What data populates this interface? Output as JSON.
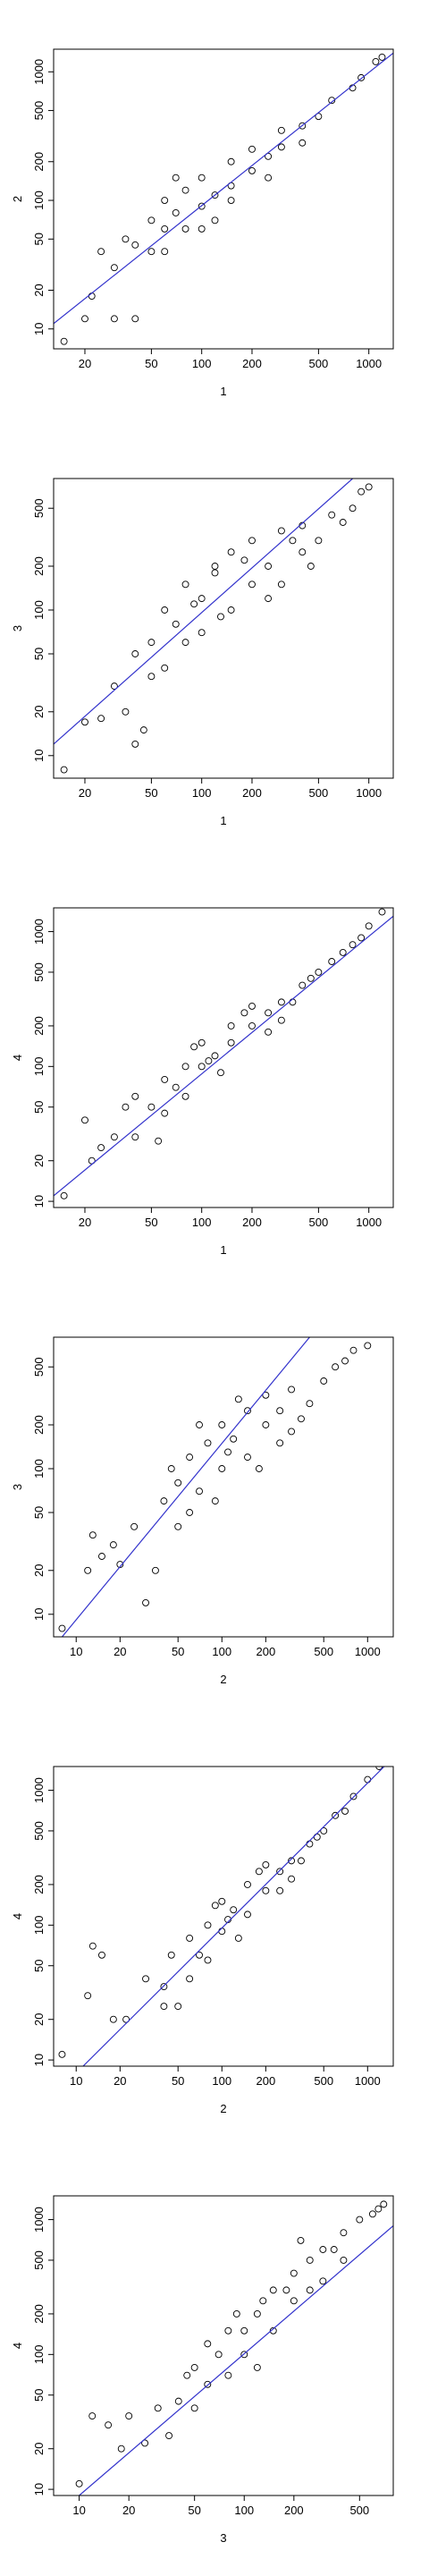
{
  "chart_data": [
    {
      "type": "scatter",
      "x_label": "1",
      "y_label": "2",
      "log_x": true,
      "log_y": true,
      "xlim": [
        13,
        1400
      ],
      "ylim": [
        7,
        1500
      ],
      "xticks": [
        20,
        50,
        100,
        200,
        500,
        1000
      ],
      "yticks": [
        10,
        20,
        50,
        100,
        200,
        500,
        1000
      ],
      "color": "#000000",
      "line_color": "#3333cc",
      "series": [
        {
          "name": null,
          "x": [
            15,
            20,
            22,
            30,
            40,
            25,
            30,
            35,
            40,
            50,
            50,
            60,
            60,
            70,
            80,
            80,
            100,
            100,
            120,
            150,
            150,
            200,
            200,
            250,
            300,
            300,
            400,
            500,
            600,
            800,
            900,
            1100,
            1200,
            70,
            120,
            250,
            400,
            150,
            100,
            60
          ],
          "y": [
            8,
            12,
            18,
            12,
            12,
            40,
            30,
            50,
            45,
            40,
            70,
            60,
            100,
            80,
            60,
            120,
            90,
            150,
            110,
            130,
            200,
            170,
            250,
            220,
            260,
            350,
            380,
            450,
            600,
            750,
            900,
            1200,
            1300,
            150,
            70,
            150,
            280,
            100,
            60,
            40
          ]
        }
      ],
      "regression_line": {
        "x": [
          13,
          1400
        ],
        "y": [
          11,
          1400
        ]
      }
    },
    {
      "type": "scatter",
      "x_label": "1",
      "y_label": "3",
      "log_x": true,
      "log_y": true,
      "xlim": [
        13,
        1400
      ],
      "ylim": [
        7,
        800
      ],
      "xticks": [
        20,
        50,
        100,
        200,
        500,
        1000
      ],
      "yticks": [
        10,
        20,
        50,
        100,
        200,
        500
      ],
      "color": "#000000",
      "line_color": "#3333cc",
      "series": [
        {
          "name": null,
          "x": [
            15,
            20,
            25,
            30,
            35,
            40,
            45,
            40,
            50,
            60,
            60,
            70,
            80,
            100,
            100,
            120,
            150,
            150,
            200,
            200,
            250,
            300,
            300,
            400,
            400,
            500,
            600,
            700,
            900,
            1000,
            80,
            120,
            250,
            350,
            180,
            50,
            90,
            130,
            450,
            800
          ],
          "y": [
            8,
            17,
            18,
            30,
            20,
            12,
            15,
            50,
            60,
            40,
            100,
            80,
            150,
            70,
            120,
            200,
            100,
            250,
            150,
            300,
            200,
            350,
            150,
            250,
            380,
            300,
            450,
            400,
            650,
            700,
            60,
            180,
            120,
            300,
            220,
            35,
            110,
            90,
            200,
            500
          ]
        }
      ],
      "regression_line": {
        "x": [
          13,
          800
        ],
        "y": [
          12,
          800
        ]
      }
    },
    {
      "type": "scatter",
      "x_label": "1",
      "y_label": "4",
      "log_x": true,
      "log_y": true,
      "xlim": [
        13,
        1400
      ],
      "ylim": [
        9,
        1500
      ],
      "xticks": [
        20,
        50,
        100,
        200,
        500,
        1000
      ],
      "yticks": [
        10,
        20,
        50,
        100,
        200,
        500,
        1000
      ],
      "color": "#000000",
      "line_color": "#3333cc",
      "series": [
        {
          "name": null,
          "x": [
            15,
            20,
            22,
            25,
            30,
            35,
            40,
            40,
            50,
            55,
            60,
            70,
            80,
            100,
            100,
            120,
            150,
            150,
            200,
            200,
            250,
            300,
            400,
            500,
            600,
            700,
            900,
            1000,
            1200,
            60,
            90,
            130,
            180,
            250,
            350,
            450,
            80,
            110,
            300,
            800
          ],
          "y": [
            11,
            40,
            20,
            25,
            30,
            50,
            60,
            30,
            50,
            28,
            80,
            70,
            100,
            100,
            150,
            120,
            150,
            200,
            200,
            280,
            250,
            300,
            400,
            500,
            600,
            700,
            900,
            1100,
            1400,
            45,
            140,
            90,
            250,
            180,
            300,
            450,
            60,
            110,
            220,
            800
          ]
        }
      ],
      "regression_line": {
        "x": [
          13,
          1400
        ],
        "y": [
          11,
          1300
        ]
      }
    },
    {
      "type": "scatter",
      "x_label": "2",
      "y_label": "3",
      "log_x": true,
      "log_y": true,
      "xlim": [
        7,
        1500
      ],
      "ylim": [
        7,
        800
      ],
      "xticks": [
        10,
        20,
        50,
        100,
        200,
        500,
        1000
      ],
      "yticks": [
        10,
        20,
        50,
        100,
        200,
        500
      ],
      "color": "#000000",
      "line_color": "#3333cc",
      "series": [
        {
          "name": null,
          "x": [
            8,
            12,
            13,
            15,
            18,
            20,
            25,
            30,
            35,
            40,
            50,
            50,
            60,
            70,
            80,
            100,
            100,
            120,
            150,
            150,
            200,
            200,
            250,
            300,
            300,
            400,
            500,
            600,
            800,
            1000,
            90,
            130,
            250,
            60,
            180,
            350,
            45,
            700,
            70,
            110
          ],
          "y": [
            8,
            20,
            35,
            25,
            30,
            22,
            40,
            12,
            20,
            60,
            40,
            80,
            120,
            70,
            150,
            100,
            200,
            160,
            250,
            120,
            200,
            320,
            250,
            350,
            180,
            280,
            400,
            500,
            650,
            700,
            60,
            300,
            150,
            50,
            100,
            220,
            100,
            550,
            200,
            130
          ]
        }
      ],
      "regression_line": {
        "x": [
          8,
          400
        ],
        "y": [
          7,
          800
        ]
      }
    },
    {
      "type": "scatter",
      "x_label": "2",
      "y_label": "4",
      "log_x": true,
      "log_y": true,
      "xlim": [
        7,
        1500
      ],
      "ylim": [
        9,
        1500
      ],
      "xticks": [
        10,
        20,
        50,
        100,
        200,
        500,
        1000
      ],
      "yticks": [
        10,
        20,
        50,
        100,
        200,
        500,
        1000
      ],
      "color": "#000000",
      "line_color": "#3333cc",
      "series": [
        {
          "name": null,
          "x": [
            8,
            12,
            13,
            15,
            18,
            22,
            30,
            40,
            45,
            50,
            60,
            70,
            80,
            100,
            100,
            120,
            150,
            150,
            200,
            200,
            250,
            300,
            400,
            500,
            600,
            800,
            1000,
            1200,
            60,
            90,
            130,
            180,
            250,
            350,
            450,
            700,
            40,
            110,
            80,
            300
          ],
          "y": [
            11,
            30,
            70,
            60,
            20,
            20,
            40,
            35,
            60,
            25,
            80,
            60,
            100,
            90,
            150,
            130,
            120,
            200,
            180,
            280,
            250,
            300,
            400,
            500,
            650,
            900,
            1200,
            1500,
            40,
            140,
            80,
            250,
            180,
            300,
            450,
            700,
            25,
            110,
            55,
            220
          ]
        }
      ],
      "regression_line": {
        "x": [
          10,
          1300
        ],
        "y": [
          8,
          1500
        ]
      }
    },
    {
      "type": "scatter",
      "x_label": "3",
      "y_label": "4",
      "log_x": true,
      "log_y": true,
      "xlim": [
        7,
        800
      ],
      "ylim": [
        9,
        1500
      ],
      "xticks": [
        10,
        20,
        50,
        100,
        200,
        500
      ],
      "yticks": [
        10,
        20,
        50,
        100,
        200,
        500,
        1000
      ],
      "color": "#000000",
      "line_color": "#3333cc",
      "series": [
        {
          "name": null,
          "x": [
            10,
            12,
            15,
            18,
            20,
            25,
            30,
            35,
            40,
            50,
            50,
            60,
            70,
            80,
            100,
            100,
            120,
            150,
            150,
            200,
            200,
            250,
            300,
            300,
            400,
            500,
            600,
            700,
            650,
            80,
            120,
            180,
            250,
            350,
            60,
            45,
            90,
            220,
            400,
            130
          ],
          "y": [
            11,
            35,
            30,
            20,
            35,
            22,
            40,
            25,
            45,
            40,
            80,
            60,
            100,
            70,
            150,
            100,
            200,
            150,
            300,
            250,
            400,
            500,
            600,
            350,
            800,
            1000,
            1100,
            1300,
            1200,
            150,
            80,
            300,
            300,
            600,
            120,
            70,
            200,
            700,
            500,
            250
          ]
        }
      ],
      "regression_line": {
        "x": [
          10,
          800
        ],
        "y": [
          9,
          900
        ]
      }
    }
  ]
}
